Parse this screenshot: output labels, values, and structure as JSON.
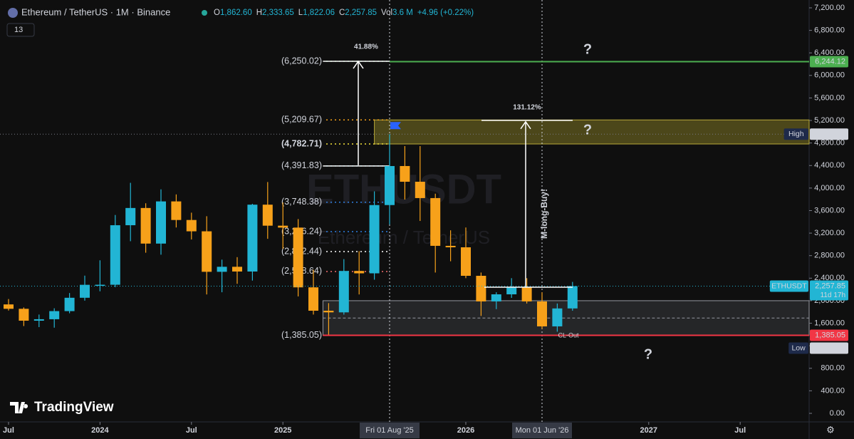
{
  "chart_data": {
    "type": "candlestick",
    "title": "Ethereum / TetherUS · 1M · Binance",
    "indicator": "13",
    "watermark": [
      "ETHUSDT",
      "Ethereum / TetherUS"
    ],
    "ohlc_legend": [
      {
        "key": "O",
        "text": "1,862.60"
      },
      {
        "key": "H",
        "text": "2,333.65"
      },
      {
        "key": "L",
        "text": "1,822.06"
      },
      {
        "key": "C",
        "text": "2,257.85"
      },
      {
        "key": "Vol",
        "text": "3.6 M"
      },
      {
        "key": "",
        "text": "+4.96 (+0.22%)"
      }
    ],
    "up_color": "#22b5d4",
    "down_color": "#f7a11a",
    "categories": [
      "2023-07",
      "2023-08",
      "2023-09",
      "2023-10",
      "2023-11",
      "2023-12",
      "2024-01",
      "2024-02",
      "2024-03",
      "2024-04",
      "2024-05",
      "2024-06",
      "2024-07",
      "2024-08",
      "2024-09",
      "2024-10",
      "2024-11",
      "2024-12",
      "2025-01",
      "2025-02",
      "2025-03",
      "2025-04",
      "2025-05",
      "2025-06",
      "2025-07",
      "2025-08",
      "2025-09",
      "2025-10",
      "2025-11",
      "2025-12",
      "2026-01",
      "2026-02",
      "2026-03",
      "2026-04",
      "2026-05",
      "2026-06",
      "2026-07",
      "2026-08"
    ],
    "open": [
      1934,
      1856,
      1645,
      1671,
      1815,
      2052,
      2282,
      2283,
      3340,
      3646,
      3014,
      3763,
      3433,
      3232,
      2513,
      2602,
      2518,
      3705,
      3332,
      3298,
      2237,
      1822,
      1793,
      2528,
      2486,
      3698,
      4391,
      4112,
      3822,
      2974,
      2948,
      2442,
      1987,
      2113,
      2240,
      1987,
      1544,
      1862.6
    ],
    "high": [
      2029,
      1880,
      1754,
      1865,
      2136,
      2445,
      2717,
      3522,
      4093,
      3730,
      3977,
      3887,
      3563,
      3500,
      2729,
      2773,
      3720,
      4107,
      3744,
      3449,
      2550,
      1957,
      2738,
      2879,
      3941,
      4956.78,
      4745,
      4745,
      3900,
      3250,
      3300,
      2500,
      2150,
      2400,
      2400,
      2150,
      1950,
      2333.65
    ],
    "low": [
      1825,
      1550,
      1531,
      1521,
      1777,
      2001,
      2167,
      2240,
      3056,
      2852,
      2817,
      3300,
      3087,
      2111,
      2150,
      2300,
      2357,
      3099,
      2921,
      2076,
      1754,
      1385,
      1752,
      2111,
      2373,
      3354,
      3796,
      3416,
      2500,
      2700,
      2400,
      1730,
      1850,
      2050,
      1950,
      1500,
      1450,
      1822.06
    ],
    "close": [
      1856,
      1645,
      1671,
      1815,
      2052,
      2282,
      2283,
      3340,
      3646,
      3014,
      3763,
      3433,
      3232,
      2513,
      2602,
      2518,
      3705,
      3332,
      3298,
      2237,
      1822,
      1793,
      2528,
      2486,
      3698,
      4391,
      4112,
      3822,
      2974,
      2948,
      2442,
      1987,
      2113,
      2240,
      1987,
      1544,
      1862.6,
      2257.85
    ],
    "ylim": [
      -152,
      7339
    ],
    "yticks": [
      {
        "value": 0,
        "label": "0.00"
      },
      {
        "value": 400,
        "label": "400.00"
      },
      {
        "value": 800,
        "label": "800.00"
      },
      {
        "value": 1200,
        "label": "1,200.00"
      },
      {
        "value": 1600,
        "label": "1,600.00"
      },
      {
        "value": 2000,
        "label": "2,000.00"
      },
      {
        "value": 2400,
        "label": "2,400.00"
      },
      {
        "value": 2800,
        "label": "2,800.00"
      },
      {
        "value": 3200,
        "label": "3,200.00"
      },
      {
        "value": 3600,
        "label": "3,600.00"
      },
      {
        "value": 4000,
        "label": "4,000.00"
      },
      {
        "value": 4400,
        "label": "4,400.00"
      },
      {
        "value": 4800,
        "label": "4,800.00"
      },
      {
        "value": 5200,
        "label": "5,200.00"
      },
      {
        "value": 5600,
        "label": "5,600.00"
      },
      {
        "value": 6000,
        "label": "6,000.00"
      },
      {
        "value": 6400,
        "label": "6,400.00"
      },
      {
        "value": 6800,
        "label": "6,800.00"
      },
      {
        "value": 7200,
        "label": "7,200.00"
      }
    ],
    "xticks": [
      {
        "value": "2023-07",
        "label": "Jul"
      },
      {
        "value": "2024-01",
        "label": "2024"
      },
      {
        "value": "2024-07",
        "label": "Jul"
      },
      {
        "value": "2025-01",
        "label": "2025"
      },
      {
        "value": "2026-01",
        "label": "2026"
      },
      {
        "value": "2027-01",
        "label": "2027"
      },
      {
        "value": "2027-07",
        "label": "Jul"
      }
    ],
    "markers": [
      {
        "value": "2025-08",
        "label": "Fri 01 Aug '25"
      },
      {
        "value": "2026-06",
        "label": "Mon 01 Jun '26"
      }
    ],
    "levels": [
      {
        "value": 6250.02,
        "label": "(6,250.02)",
        "color": "#4caf50"
      },
      {
        "value": 5209.67,
        "label": "(5,209.67)",
        "color": "#f7a11a"
      },
      {
        "value": 4782.71,
        "label": "(4,782.71)",
        "color": "#f5e33b"
      },
      {
        "value": 4391.83,
        "label": "(4,391.83)",
        "color": "#22b5d4"
      },
      {
        "value": 3748.38,
        "label": "(3,748.38)",
        "color": "#2f7fe0"
      },
      {
        "value": 3226.24,
        "label": "(3,226.24)",
        "color": "#2f7fe0"
      },
      {
        "value": 2872.44,
        "label": "(2,872.44)",
        "color": "#ffffff"
      },
      {
        "value": 2518.64,
        "label": "(2,518.64)",
        "color": "#f26d6d"
      },
      {
        "value": 1385.05,
        "label": "(1,385.05)",
        "color": "#787b86"
      }
    ],
    "zone": {
      "top": 2000,
      "bottom": 1385.05
    },
    "measures": [
      {
        "from": 4405,
        "to": 6250.02,
        "label": "41.88%"
      },
      {
        "from": 2240,
        "to": 5177,
        "label": "131.12%"
      }
    ],
    "price_labels": [
      {
        "value": 6244.12,
        "label": "6,244.12",
        "color": "#4caf50"
      },
      {
        "value": 4956.78,
        "label": "4,956.78",
        "tag": "High",
        "color": "#d1d4dc"
      },
      {
        "value": 2257.85,
        "label": "2,257.85",
        "tag": "ETHUSDT",
        "extra": "11d 17h",
        "color": "#22b5d4"
      },
      {
        "value": 1385.05,
        "label": "1,385.05",
        "color": "#f23645"
      },
      {
        "value": 1385.05,
        "label": "1,385.05",
        "tag": "Low",
        "color": "#d1d4dc"
      }
    ],
    "annotations": [
      "?",
      "?",
      "?",
      "M-long-Buy!",
      "CL-Out"
    ],
    "brand": "TradingView"
  }
}
